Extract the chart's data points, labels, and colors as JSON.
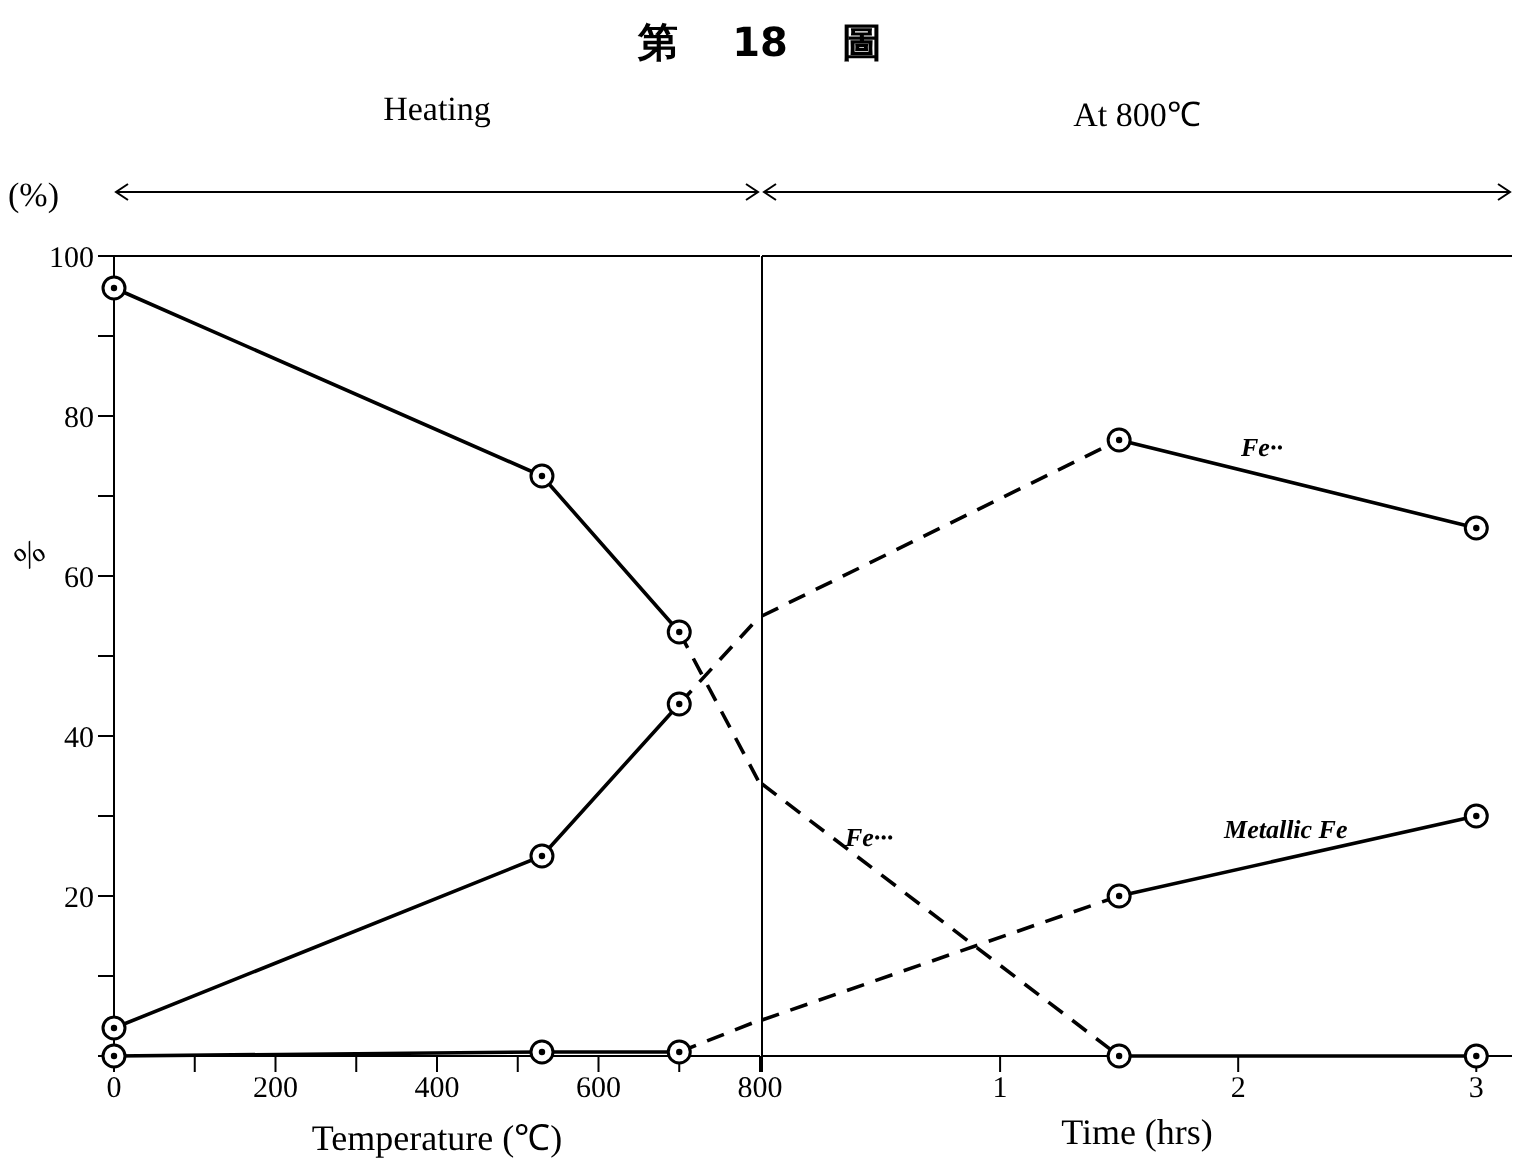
{
  "chart_data": [
    {
      "type": "line",
      "title": "第 18 圖",
      "subtitle": "Heating",
      "xlabel": "Temperature (℃)",
      "ylabel": "%",
      "xlim": [
        0,
        800
      ],
      "ylim": [
        0,
        100
      ],
      "xticks": [
        0,
        {
          "value": 100,
          "label": null
        },
        200,
        {
          "value": 300,
          "label": null
        },
        400,
        {
          "value": 500,
          "label": null
        },
        600,
        {
          "value": 700,
          "label": null
        },
        800
      ],
      "yticks": [
        {
          "value": 0,
          "label": null
        },
        {
          "value": 10,
          "label": null
        },
        20,
        {
          "value": 30,
          "label": null
        },
        40,
        {
          "value": 50,
          "label": null
        },
        60,
        {
          "value": 70,
          "label": null
        },
        80,
        {
          "value": 90,
          "label": null
        },
        100
      ],
      "ref_lines": [
        {
          "axis": "y",
          "value": 100,
          "color": "#000000"
        }
      ],
      "annotations": [
        "(%)"
      ],
      "grid": false,
      "legend": false,
      "series": [
        {
          "color": "#000000",
          "x": [
            0,
            530,
            700
          ],
          "values": [
            96,
            72.5,
            53
          ],
          "marker": "circle",
          "line_style": "solid"
        },
        {
          "color": "#000000",
          "x": [
            700,
            800
          ],
          "values": [
            53,
            34
          ],
          "line_style": "dashed"
        },
        {
          "color": "#000000",
          "x": [
            0,
            530,
            700
          ],
          "values": [
            3.5,
            25,
            44
          ],
          "marker": "circle",
          "line_style": "solid"
        },
        {
          "color": "#000000",
          "x": [
            700,
            800
          ],
          "values": [
            44,
            55
          ],
          "line_style": "dashed"
        },
        {
          "color": "#000000",
          "x": [
            0,
            530,
            700
          ],
          "values": [
            0,
            0.5,
            0.5
          ],
          "marker": "circle",
          "line_style": "solid"
        },
        {
          "color": "#000000",
          "x": [
            700,
            800
          ],
          "values": [
            0.5,
            4.5
          ],
          "line_style": "dashed"
        }
      ]
    },
    {
      "type": "line",
      "subtitle": "At 800℃",
      "xlabel": "Time (hrs)",
      "xlim": [
        0,
        3.15
      ],
      "ylim": [
        0,
        100
      ],
      "xticks": [
        {
          "value": 0,
          "label": null
        },
        1,
        2,
        3
      ],
      "tick_labels": "x",
      "ref_lines": [
        {
          "axis": "y",
          "value": 100,
          "color": "#000000"
        }
      ],
      "annotations": [
        {
          "text": "Fe··",
          "x": 2.1,
          "y": 72.6
        },
        {
          "text": "Fe···",
          "x": 0.45,
          "y": 23.8
        },
        {
          "text": "Metallic Fe",
          "x": 2.2,
          "y": 24.7
        }
      ],
      "grid": false,
      "legend": false,
      "series": [
        {
          "color": "#000000",
          "x": [
            0,
            1.5
          ],
          "values": [
            34,
            0
          ],
          "line_style": "dashed"
        },
        {
          "color": "#000000",
          "x": [
            1.5,
            3
          ],
          "values": [
            0,
            0
          ],
          "marker": "circle",
          "line_style": "solid"
        },
        {
          "color": "#000000",
          "x": [
            0,
            1.5
          ],
          "values": [
            55,
            77
          ],
          "line_style": "dashed"
        },
        {
          "color": "#000000",
          "x": [
            1.5,
            3
          ],
          "values": [
            77,
            66
          ],
          "marker": "circle",
          "line_style": "solid"
        },
        {
          "color": "#000000",
          "x": [
            0,
            1.5
          ],
          "values": [
            4.5,
            20
          ],
          "line_style": "dashed"
        },
        {
          "color": "#000000",
          "x": [
            1.5,
            3
          ],
          "values": [
            20,
            30
          ],
          "marker": "circle",
          "line_style": "solid"
        }
      ]
    }
  ]
}
